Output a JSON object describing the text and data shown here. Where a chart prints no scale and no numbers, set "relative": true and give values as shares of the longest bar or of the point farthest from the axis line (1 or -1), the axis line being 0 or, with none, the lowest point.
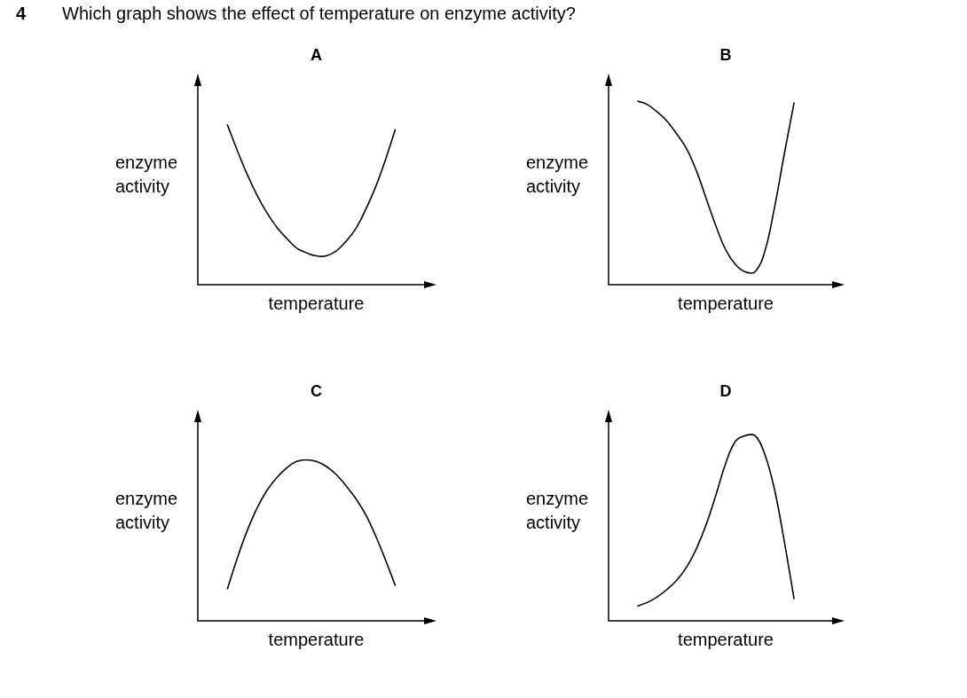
{
  "chart_data": [
    {
      "type": "other",
      "title": "Which graph shows the effect of temperature on enzyme activity?",
      "annotations": [
        "4"
      ]
    },
    {
      "type": "line",
      "title": "A",
      "xlabel": "temperature",
      "ylabel": "enzyme activity",
      "relative": true,
      "legend": false,
      "marker": "none",
      "categories": [
        null,
        null,
        null,
        null,
        null,
        null,
        null,
        null,
        null,
        null,
        null,
        null,
        null,
        null,
        null,
        null,
        null,
        null,
        null,
        null,
        null,
        null,
        null,
        null,
        null
      ],
      "series": [
        {
          "color": "#000000",
          "values": [
            null,
            null,
            null,
            1,
            0.84,
            0.69,
            0.56,
            0.45,
            0.36,
            0.29,
            0.23,
            0.2,
            0.18,
            0.18,
            0.21,
            0.27,
            0.35,
            0.47,
            0.61,
            0.78,
            0.97,
            null,
            null,
            null,
            null
          ]
        }
      ]
    },
    {
      "type": "line",
      "title": "B",
      "xlabel": "temperature",
      "ylabel": "enzyme activity",
      "relative": true,
      "legend": false,
      "marker": "none",
      "categories": [
        null,
        null,
        null,
        null,
        null,
        null,
        null,
        null,
        null,
        null,
        null,
        null,
        null,
        null,
        null,
        null,
        null,
        null,
        null,
        null,
        null,
        null,
        null,
        null,
        null
      ],
      "series": [
        {
          "color": "#000000",
          "values": [
            null,
            null,
            null,
            1,
            0.98,
            0.94,
            0.89,
            0.82,
            0.74,
            0.62,
            0.47,
            0.32,
            0.19,
            0.11,
            0.07,
            0.07,
            0.18,
            0.42,
            0.71,
            0.99,
            null,
            null,
            null,
            null,
            null
          ]
        }
      ]
    },
    {
      "type": "line",
      "title": "C",
      "xlabel": "temperature",
      "ylabel": "enzyme activity",
      "relative": true,
      "legend": false,
      "marker": "none",
      "categories": [
        null,
        null,
        null,
        null,
        null,
        null,
        null,
        null,
        null,
        null,
        null,
        null,
        null,
        null,
        null,
        null,
        null,
        null,
        null,
        null,
        null,
        null,
        null,
        null,
        null
      ],
      "series": [
        {
          "color": "#000000",
          "values": [
            null,
            null,
            null,
            0.2,
            0.39,
            0.56,
            0.7,
            0.81,
            0.89,
            0.95,
            0.99,
            1,
            0.99,
            0.96,
            0.91,
            0.84,
            0.76,
            0.66,
            0.53,
            0.38,
            0.22,
            null,
            null,
            null,
            null
          ]
        }
      ]
    },
    {
      "type": "line",
      "title": "D",
      "xlabel": "temperature",
      "ylabel": "enzyme activity",
      "relative": true,
      "legend": false,
      "marker": "none",
      "categories": [
        null,
        null,
        null,
        null,
        null,
        null,
        null,
        null,
        null,
        null,
        null,
        null,
        null,
        null,
        null,
        null,
        null,
        null,
        null,
        null,
        null,
        null,
        null,
        null,
        null
      ],
      "series": [
        {
          "color": "#000000",
          "values": [
            null,
            null,
            null,
            0.08,
            0.1,
            0.13,
            0.17,
            0.22,
            0.29,
            0.39,
            0.52,
            0.68,
            0.85,
            0.97,
            1,
            1,
            0.9,
            0.71,
            0.43,
            0.12,
            null,
            null,
            null,
            null,
            null
          ]
        }
      ]
    }
  ]
}
